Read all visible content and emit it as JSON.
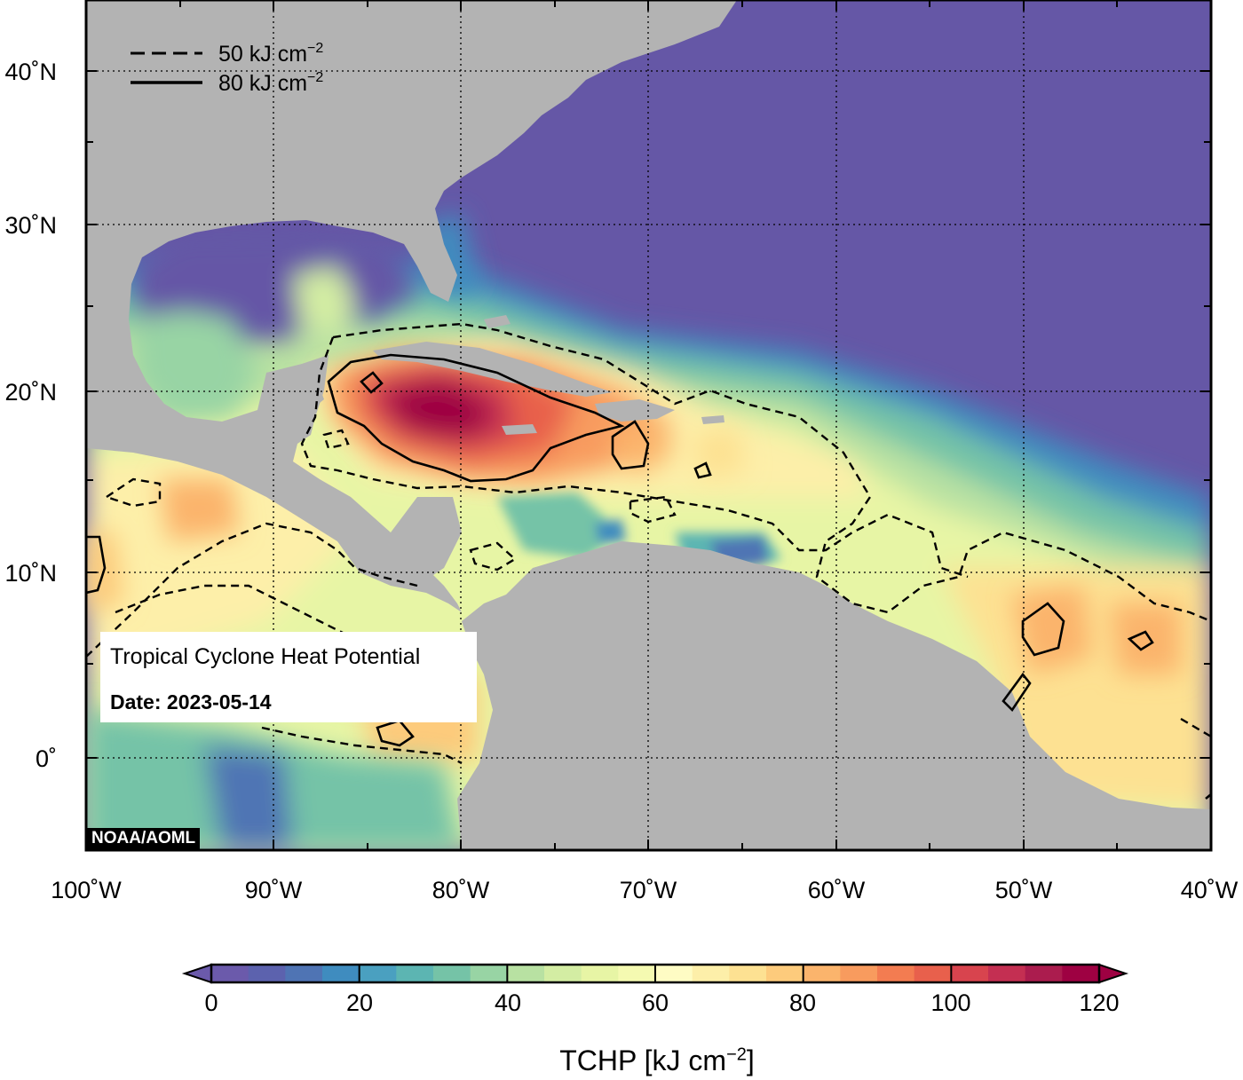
{
  "map": {
    "product": "Tropical Cyclone Heat Potential",
    "date_line": "Date: 2023-05-14",
    "credit": "NOAA/AOML",
    "extent": {
      "lon_min": -100,
      "lon_max": -40,
      "lat_min": -5,
      "lat_max": 45
    },
    "lon_labels": [
      "100˚W",
      "90˚W",
      "80˚W",
      "70˚W",
      "60˚W",
      "50˚W",
      "40˚W"
    ],
    "lat_labels": [
      "40˚N",
      "30˚N",
      "20˚N",
      "10˚N",
      "0˚"
    ],
    "gridlines": "dotted",
    "colors": {
      "land": "#b3b3b3",
      "deep_water": "#6557a6"
    },
    "contour_legend": {
      "dashed": {
        "value": "50",
        "unit_text": "kJ cm",
        "unit_exp": "−2"
      },
      "solid": {
        "value": "80",
        "unit_text": "kJ cm",
        "unit_exp": "−2"
      }
    }
  },
  "colorbar": {
    "ticks": [
      "0",
      "20",
      "40",
      "60",
      "80",
      "100",
      "120"
    ],
    "range": [
      0,
      120
    ],
    "title_text": "TCHP [kJ cm",
    "title_exp": "−2",
    "title_close": "]",
    "palette": [
      "#6b5aab",
      "#5c62ae",
      "#4f74b4",
      "#3f8cbf",
      "#4aa0c0",
      "#5cb5b2",
      "#75c3a7",
      "#98d4a4",
      "#b8e1a2",
      "#d3eda3",
      "#e7f5a5",
      "#f5fab1",
      "#fefcc4",
      "#fdefa9",
      "#fde192",
      "#fdcb7c",
      "#fbb46c",
      "#f89b5e",
      "#f37c51",
      "#e8604c",
      "#d8444e",
      "#c42f52",
      "#ab1c4e",
      "#9e0142"
    ]
  }
}
